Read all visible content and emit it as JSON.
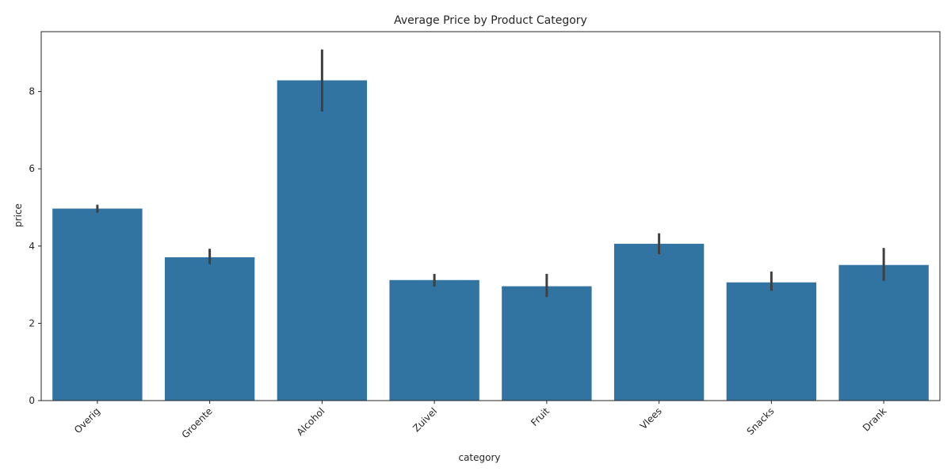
{
  "chart_data": {
    "type": "bar",
    "title": "Average Price by Product Category",
    "xlabel": "category",
    "ylabel": "price",
    "categories": [
      "Overig",
      "Groente",
      "Alcohol",
      "Zuivel",
      "Fruit",
      "Vlees",
      "Snacks",
      "Drank"
    ],
    "values": [
      4.97,
      3.71,
      8.29,
      3.12,
      2.96,
      4.06,
      3.06,
      3.51
    ],
    "error_low": [
      4.86,
      3.53,
      7.48,
      2.95,
      2.68,
      3.79,
      2.84,
      3.1
    ],
    "error_high": [
      5.07,
      3.93,
      9.09,
      3.28,
      3.28,
      4.33,
      3.34,
      3.95
    ],
    "ylim": [
      0,
      9.55
    ],
    "yticks": [
      0,
      2,
      4,
      6,
      8
    ],
    "grid": false,
    "colors": {
      "bar": "#3274a1",
      "error": "#404040",
      "axis": "#262626"
    },
    "tick_rotation": -45
  }
}
